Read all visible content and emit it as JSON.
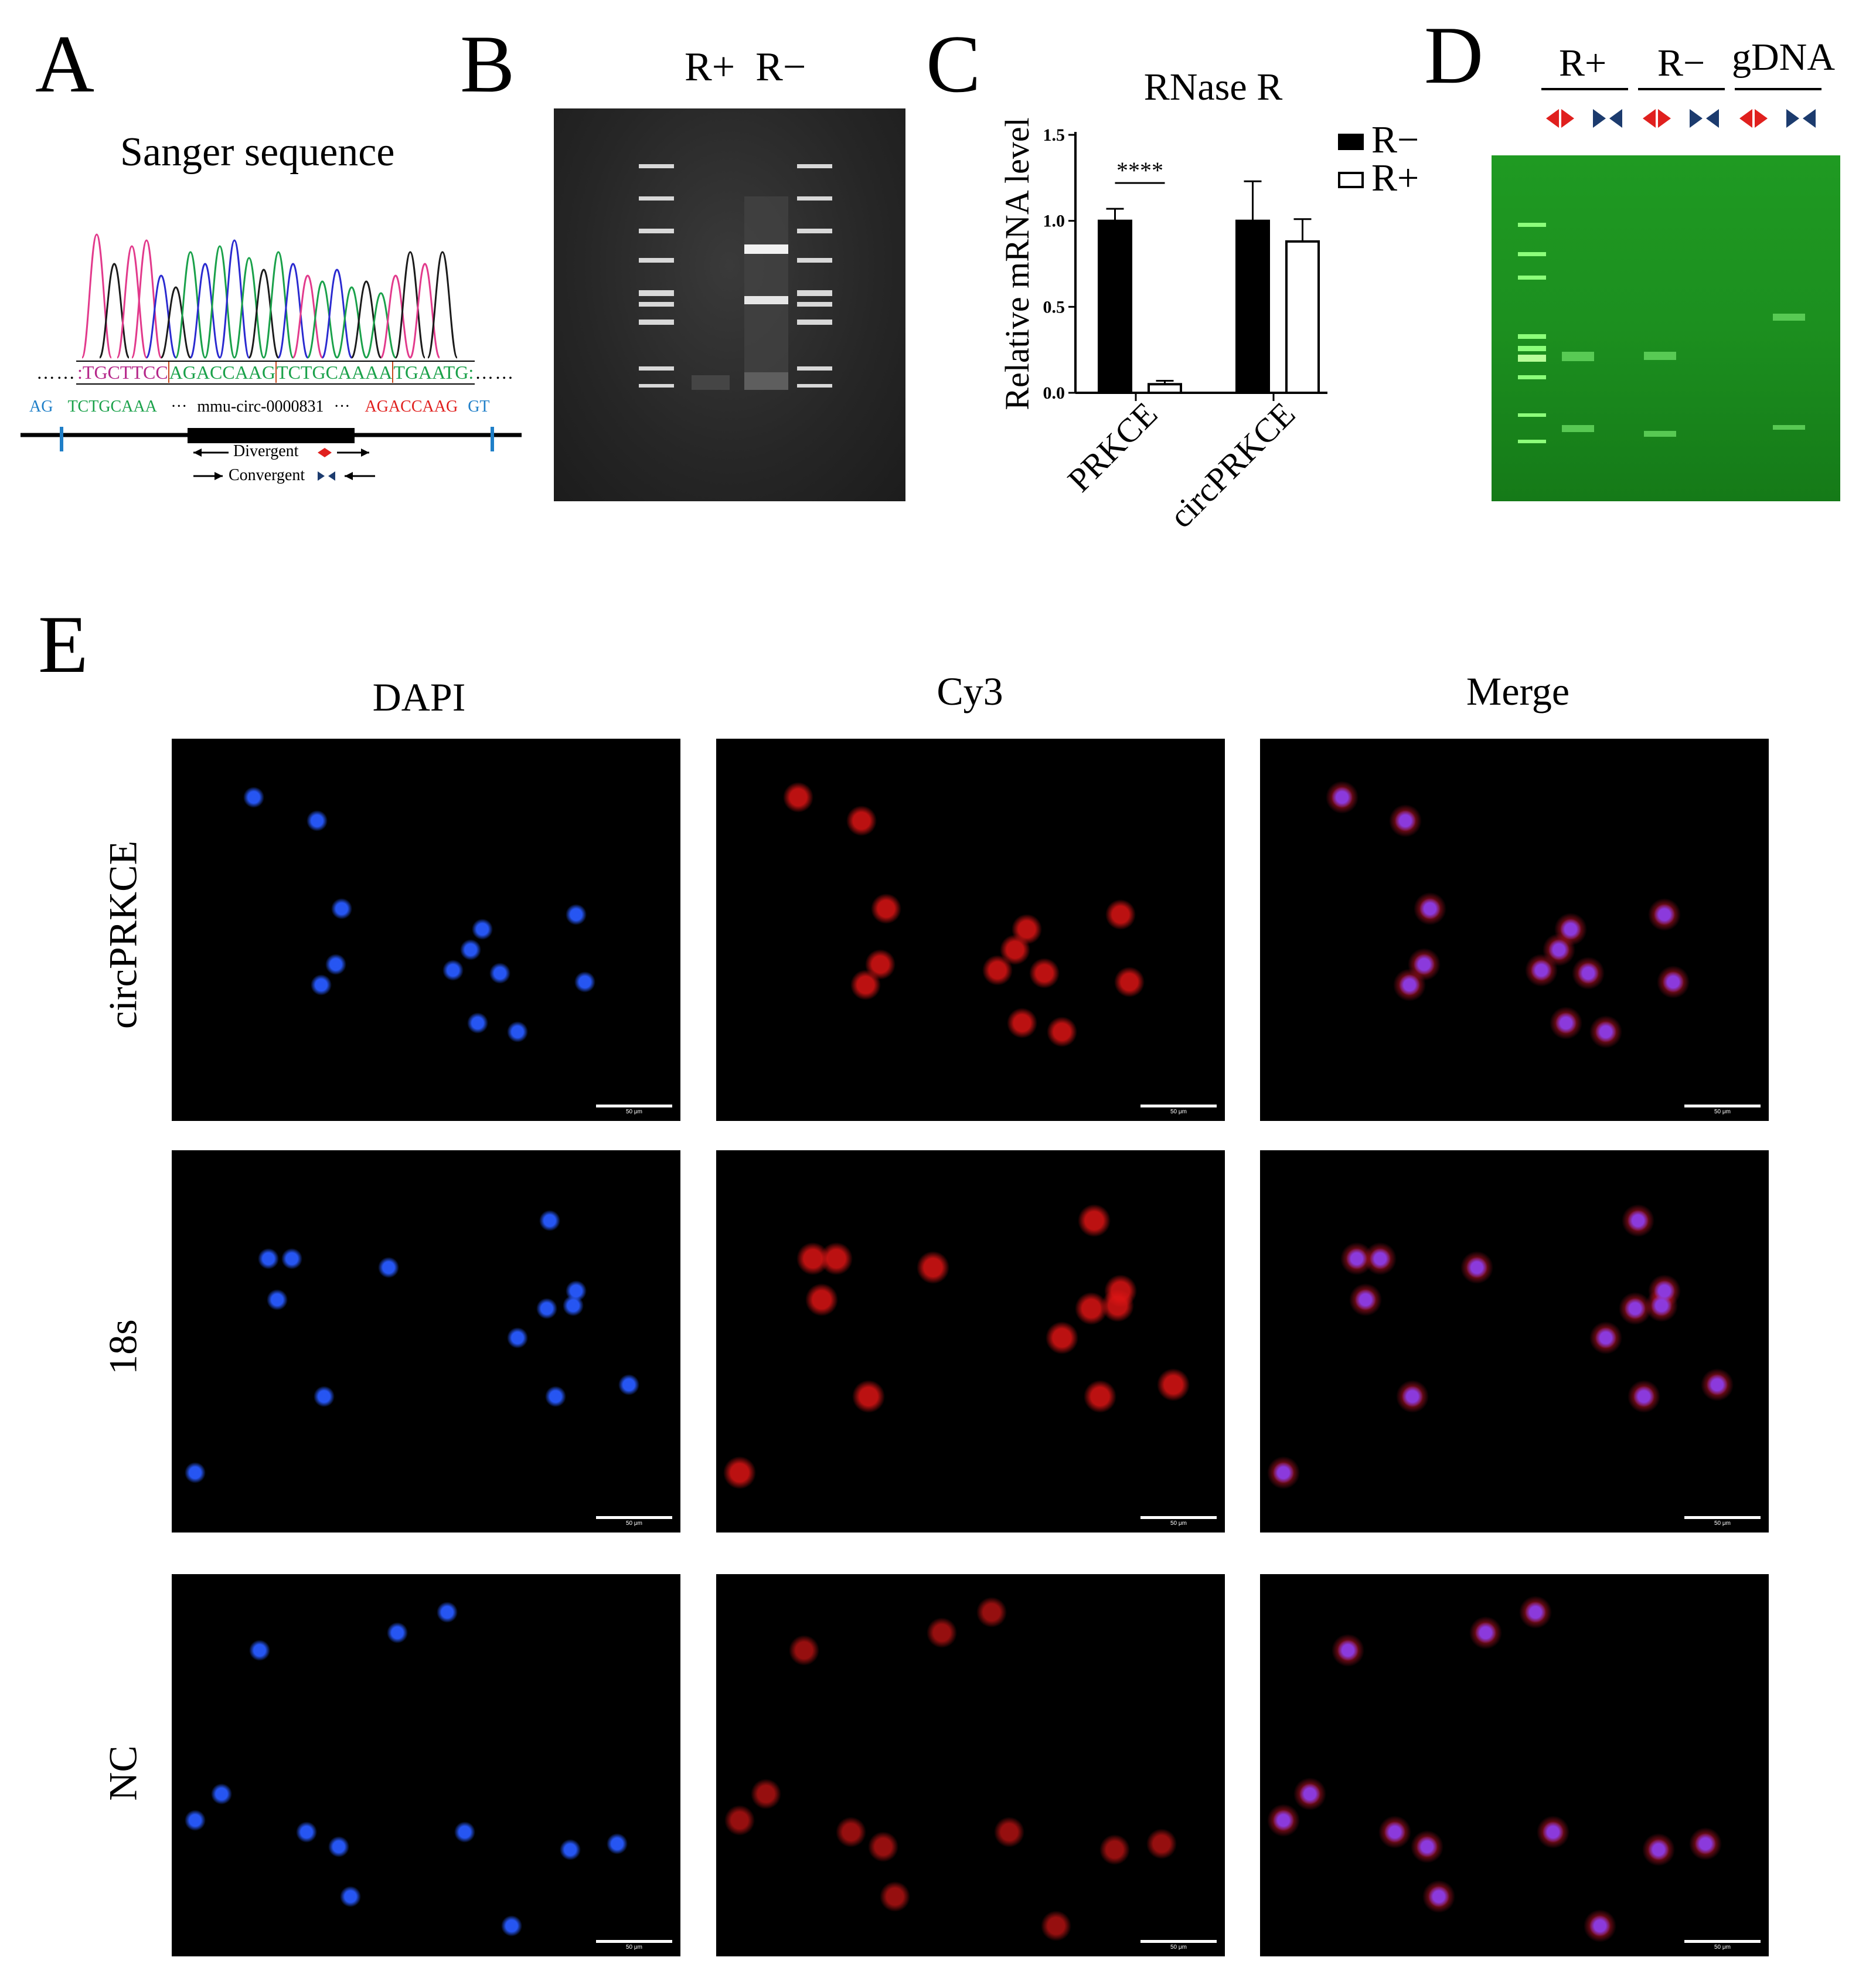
{
  "panels": {
    "a": {
      "letter": "A",
      "title": "Sanger sequence",
      "seq_top": ":TGCTTCCAGACCAAGTCTGCAAAATGAATG:",
      "seq_segments": [
        {
          "text": "TGCTTCC",
          "color": "#b5278a"
        },
        {
          "text": "AGACCAAG",
          "color": "#1aa14a"
        },
        {
          "text": "TCTGCAAAA",
          "color": "#1aa14a"
        },
        {
          "text": "TGAATG",
          "color": "#1aa14a"
        }
      ],
      "left_junction": "AG",
      "left_seq": "TCTGCAAA",
      "circ_name": "mmu-circ-0000831",
      "right_seq": "AGACCAAG",
      "right_junction": "GT",
      "divergent_label": "Divergent",
      "convergent_label": "Convergent",
      "colors": {
        "junction": "#1f7fc8",
        "left_seq": "#1aa14a",
        "right_seq": "#e0201e"
      }
    },
    "b": {
      "letter": "B",
      "lane_labels": "R+  R−"
    },
    "c": {
      "letter": "C",
      "significance": "****"
    },
    "d": {
      "letter": "D",
      "groups": [
        "R+",
        "R−",
        "gDNA"
      ]
    },
    "e": {
      "letter": "E",
      "columns": [
        "DAPI",
        "Cy3",
        "Merge"
      ],
      "rows": [
        "circPRKCE",
        "18s",
        "NC"
      ],
      "scale_label": "50 μm"
    }
  },
  "chart_data": {
    "type": "bar",
    "title": "RNase R",
    "ylabel": "Relative mRNA level",
    "xlabel": "",
    "categories": [
      "PRKCE",
      "circPRKCE"
    ],
    "series": [
      {
        "name": "R−",
        "values": [
          1.0,
          1.0
        ],
        "errors": [
          0.07,
          0.23
        ],
        "fill": "#000000"
      },
      {
        "name": "R+",
        "values": [
          0.05,
          0.88
        ],
        "errors": [
          0.02,
          0.13
        ],
        "fill": "#ffffff"
      }
    ],
    "ylim": [
      0,
      1.5
    ],
    "yticks": [
      "0.0",
      "0.5",
      "1.0",
      "1.5"
    ],
    "legend_position": "top-right",
    "grid": false
  }
}
